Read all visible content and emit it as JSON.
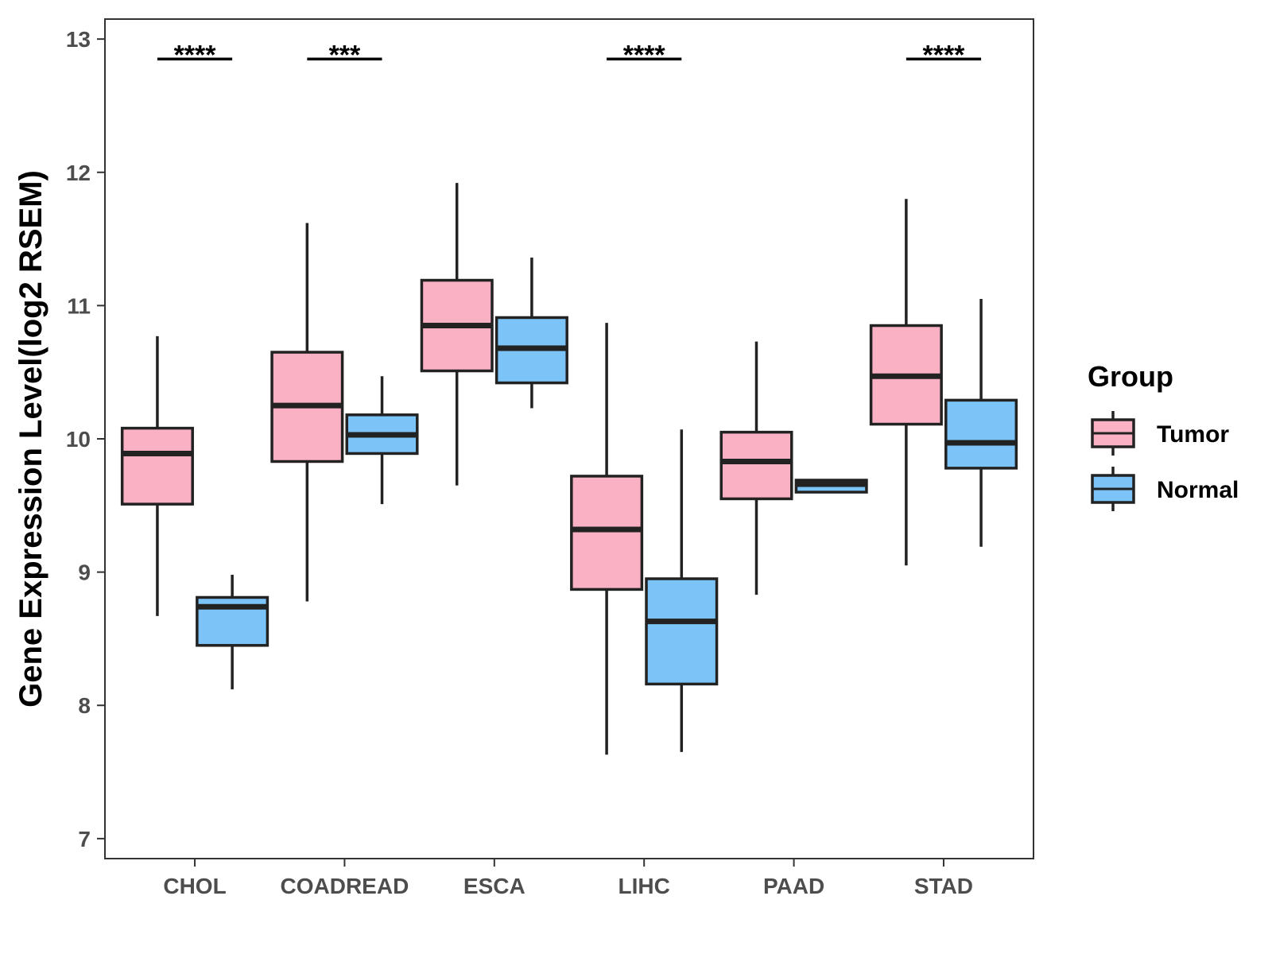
{
  "chart_data": {
    "type": "boxplot",
    "title": "",
    "xlabel": "",
    "ylabel": "Gene Expression Level(log2 RSEM)",
    "ylim": [
      6.85,
      13.15
    ],
    "yticks": [
      7,
      8,
      9,
      10,
      11,
      12,
      13
    ],
    "categories": [
      "CHOL",
      "COADREAD",
      "ESCA",
      "LIHC",
      "PAAD",
      "STAD"
    ],
    "series": [
      {
        "name": "Tumor",
        "color": "#FBB1C4",
        "boxes": [
          {
            "min": 8.67,
            "q1": 9.51,
            "median": 9.89,
            "q3": 10.08,
            "max": 10.77
          },
          {
            "min": 8.78,
            "q1": 9.83,
            "median": 10.25,
            "q3": 10.65,
            "max": 11.62
          },
          {
            "min": 9.65,
            "q1": 10.51,
            "median": 10.85,
            "q3": 11.19,
            "max": 11.92
          },
          {
            "min": 7.63,
            "q1": 8.87,
            "median": 9.32,
            "q3": 9.72,
            "max": 10.87
          },
          {
            "min": 8.83,
            "q1": 9.55,
            "median": 9.83,
            "q3": 10.05,
            "max": 10.73
          },
          {
            "min": 9.05,
            "q1": 10.11,
            "median": 10.47,
            "q3": 10.85,
            "max": 11.8
          }
        ]
      },
      {
        "name": "Normal",
        "color": "#7CC4F8",
        "boxes": [
          {
            "min": 8.12,
            "q1": 8.45,
            "median": 8.74,
            "q3": 8.81,
            "max": 8.98
          },
          {
            "min": 9.51,
            "q1": 9.89,
            "median": 10.03,
            "q3": 10.18,
            "max": 10.47
          },
          {
            "min": 10.23,
            "q1": 10.42,
            "median": 10.68,
            "q3": 10.91,
            "max": 11.36
          },
          {
            "min": 7.65,
            "q1": 8.16,
            "median": 8.63,
            "q3": 8.95,
            "max": 10.07
          },
          {
            "min": 9.6,
            "q1": 9.6,
            "median": 9.66,
            "q3": 9.69,
            "max": 9.69
          },
          {
            "min": 9.19,
            "q1": 9.78,
            "median": 9.97,
            "q3": 10.29,
            "max": 11.05
          }
        ]
      }
    ],
    "significance": [
      {
        "category": "CHOL",
        "label": "****"
      },
      {
        "category": "COADREAD",
        "label": "***"
      },
      {
        "category": "ESCA",
        "label": ""
      },
      {
        "category": "LIHC",
        "label": "****"
      },
      {
        "category": "PAAD",
        "label": ""
      },
      {
        "category": "STAD",
        "label": "****"
      }
    ],
    "legend": {
      "title": "Group",
      "position": "right",
      "items": [
        "Tumor",
        "Normal"
      ]
    }
  }
}
